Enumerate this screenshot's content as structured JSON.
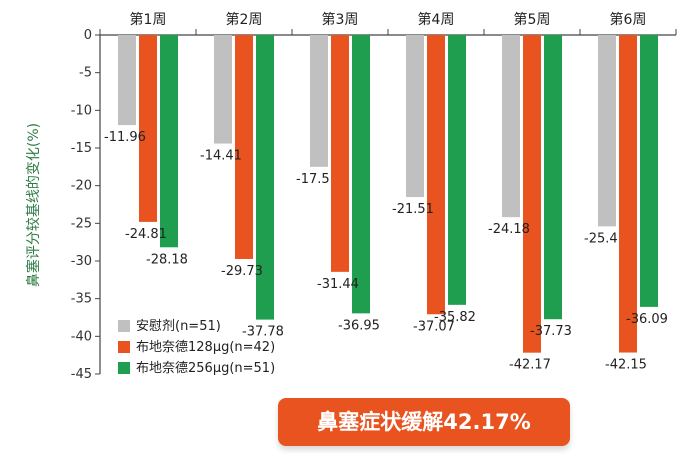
{
  "chart_data": {
    "type": "bar",
    "categories": [
      "第1周",
      "第2周",
      "第3周",
      "第4周",
      "第5周",
      "第6周"
    ],
    "series": [
      {
        "name": "安慰剂(n=51)",
        "color": "#c0c0c0",
        "values": [
          -11.96,
          -14.41,
          -17.5,
          -21.51,
          -24.18,
          -25.4
        ]
      },
      {
        "name": "布地奈德128μg(n=42)",
        "color": "#e8531f",
        "values": [
          -24.81,
          -29.73,
          -31.44,
          -37.07,
          -42.17,
          -42.15
        ]
      },
      {
        "name": "布地奈德256μg(n=51)",
        "color": "#1f9e4f",
        "values": [
          -28.18,
          -37.78,
          -36.95,
          -35.82,
          -37.73,
          -36.09
        ]
      }
    ],
    "ylabel": "鼻塞评分较基线的变化(%)",
    "ylim": [
      -45,
      0
    ],
    "yticks": [
      0,
      -5,
      -10,
      -15,
      -20,
      -25,
      -30,
      -35,
      -40,
      -45
    ],
    "legend_position": "bottom-left",
    "grid": false
  },
  "banner": {
    "text": "鼻塞症状缓解42.17%"
  }
}
